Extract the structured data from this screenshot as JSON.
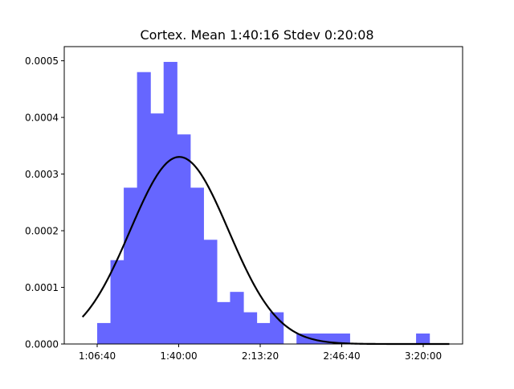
{
  "chart_data": {
    "type": "bar",
    "title": "Cortex. Mean 1:40:16 Stdev 0:20:08",
    "xlabel": "",
    "ylabel": "",
    "x_unit": "seconds",
    "xlim": [
      3920,
      10940
    ],
    "ylim": [
      0,
      0.000525
    ],
    "xticks": [
      {
        "value": 4000,
        "label": "1:06:40"
      },
      {
        "value": 6000,
        "label": "1:40:00"
      },
      {
        "value": 8000,
        "label": "2:13:20"
      },
      {
        "value": 10000,
        "label": "2:46:40"
      },
      {
        "value": 12000,
        "label": "3:20:00"
      }
    ],
    "yticks": [
      {
        "value": 0,
        "label": "0.0000"
      },
      {
        "value": 0.0001,
        "label": "0.0001"
      },
      {
        "value": 0.0002,
        "label": "0.0002"
      },
      {
        "value": 0.0003,
        "label": "0.0003"
      },
      {
        "value": 0.0004,
        "label": "0.0004"
      },
      {
        "value": 0.0005,
        "label": "0.0005"
      }
    ],
    "histogram": {
      "bin_width": 326,
      "color": "#6666ff",
      "bins": [
        {
          "x0": 4000,
          "y": 3.7e-05
        },
        {
          "x0": 4326,
          "y": 0.000148
        },
        {
          "x0": 4652,
          "y": 0.000276
        },
        {
          "x0": 4978,
          "y": 0.00048
        },
        {
          "x0": 5304,
          "y": 0.000407
        },
        {
          "x0": 5630,
          "y": 0.000498
        },
        {
          "x0": 5956,
          "y": 0.00037
        },
        {
          "x0": 6282,
          "y": 0.000276
        },
        {
          "x0": 6608,
          "y": 0.000184
        },
        {
          "x0": 6934,
          "y": 7.4e-05
        },
        {
          "x0": 7260,
          "y": 9.2e-05
        },
        {
          "x0": 7586,
          "y": 5.6e-05
        },
        {
          "x0": 7912,
          "y": 3.7e-05
        },
        {
          "x0": 8238,
          "y": 5.6e-05
        },
        {
          "x0": 8564,
          "y": 0.0
        },
        {
          "x0": 8890,
          "y": 1.85e-05
        },
        {
          "x0": 9216,
          "y": 1.85e-05
        },
        {
          "x0": 9542,
          "y": 1.85e-05
        },
        {
          "x0": 9868,
          "y": 1.85e-05
        },
        {
          "x0": 10194,
          "y": 0.0
        },
        {
          "x0": 10520,
          "y": 0.0
        },
        {
          "x0": 10846,
          "y": 0.0
        },
        {
          "x0": 11172,
          "y": 0.0
        },
        {
          "x0": 11498,
          "y": 0.0
        },
        {
          "x0": 11824,
          "y": 1.85e-05
        }
      ]
    },
    "series": [
      {
        "type": "line",
        "color": "#000000",
        "distribution": "normal",
        "mean": 6016,
        "stdev": 1208,
        "x_range": [
          3640,
          12640
        ]
      }
    ]
  }
}
